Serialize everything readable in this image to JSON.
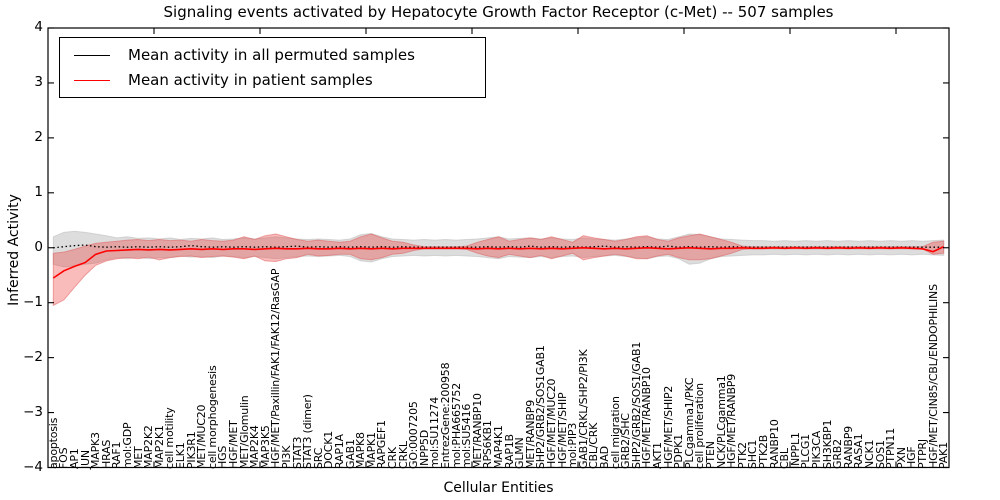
{
  "title": "Signaling events activated by Hepatocyte Growth Factor Receptor (c-Met) -- 507 samples",
  "axes": {
    "x_label": "Cellular Entities",
    "y_label": "Inferred Activity",
    "y_tick_labels": [
      "4",
      "3",
      "2",
      "1",
      "0",
      "−1",
      "−2",
      "−3",
      "−4"
    ]
  },
  "legend": {
    "entries": [
      {
        "label": "Mean activity in all permuted samples",
        "color": "#000000"
      },
      {
        "label": "Mean activity in patient samples",
        "color": "#ff0000"
      }
    ]
  },
  "chart_data": {
    "type": "line",
    "title": "Signaling events activated by Hepatocyte Growth Factor Receptor (c-Met) -- 507 samples",
    "xlabel": "Cellular Entities",
    "ylabel": "Inferred Activity",
    "ylim": [
      -4,
      4
    ],
    "x_tick_step": 10,
    "grid": false,
    "legend_position": "upper left",
    "categories": [
      "apoptosis",
      "FOS",
      "AP1",
      "JUN",
      "MAPK3",
      "HRAS",
      "RAF1",
      "mol:GDP",
      "MET",
      "MAP2K2",
      "MAP2K1",
      "cell motility",
      "ELK1",
      "PIK3R1",
      "MET/MUC20",
      "cell morphogenesis",
      "HGS",
      "HGF/MET",
      "MET/Glomulin",
      "MAP2K4",
      "MAP3K5",
      "HGF/MET/Paxillin/FAK1/FAK12/RasGAP",
      "PI3K",
      "STAT3",
      "STAT3 (dimer)",
      "SRC",
      "DOCK1",
      "RAP1A",
      "GAB1",
      "MAPK8",
      "MAPK1",
      "RAPGEF1",
      "CRK",
      "CRKL",
      "GO:0007205",
      "INPP5D",
      "mol:SU11274",
      "EntrezGene:200958",
      "mol:PHA665752",
      "mol:SU5416",
      "MET/RANBP10",
      "RPS6KB1",
      "MAP4K1",
      "RAP1B",
      "GLMN",
      "MET/RANBP9",
      "SHP2/GRB2/SOS1GAB1",
      "HGF/MET/MUC20",
      "HGF/MET/SHIP",
      "mol:PIP3",
      "GAB1/CRKL/SHP2/PI3K",
      "CBL/CRK",
      "BAD",
      "cell migration",
      "GRB2/SHC",
      "SHP2/GRB2/SOS1/GAB1",
      "HGF/MET/RANBP10",
      "AKT1",
      "HGF/MET/SHIP2",
      "PDPK1",
      "PLCgamma1/PKC",
      "cell proliferation",
      "PTEN",
      "NCK/PLCgamma1",
      "HGF/MET/RANBP9",
      "PTK2",
      "SHC1",
      "PTK2B",
      "RANBP10",
      "CBL",
      "INPPL1",
      "PLCG1",
      "PIK3CA",
      "SH3KBP1",
      "GRB2",
      "RANBP9",
      "RASA1",
      "NCK1",
      "SOS1",
      "PTPN11",
      "PXN",
      "HGF",
      "PTPRJ",
      "HGF/MET/CIN85/CBL/ENDOPHILINS",
      "PAK1"
    ],
    "series": [
      {
        "name": "Mean activity in all permuted samples",
        "color": "#000000",
        "style": "dotted",
        "width": 1.3,
        "values": [
          0,
          0.02,
          0.04,
          0.05,
          0.02,
          0.01,
          0.02,
          0.01,
          0.02,
          0.01,
          0.02,
          0.01,
          0.02,
          0.04,
          0.02,
          0.01,
          0.02,
          0.01,
          0.02,
          0.01,
          0.02,
          0.01,
          0.02,
          0.03,
          0.01,
          0.02,
          0.01,
          0.02,
          0.01,
          0.02,
          0.01,
          0.02,
          0.01,
          0.02,
          0.01,
          0.01,
          0.01,
          0.01,
          0.01,
          0.01,
          0.01,
          0.02,
          0.01,
          0.02,
          0.01,
          0.03,
          0.01,
          0.02,
          0.01,
          0.02,
          0.01,
          0.02,
          0.03,
          0.01,
          0.02,
          0.01,
          0.02,
          0.01,
          0.03,
          0.01,
          0.02,
          0.01,
          0.02,
          0.01,
          0.02,
          0.01,
          0.01,
          0.01,
          0.01,
          0.01,
          0.01,
          0.01,
          0.01,
          0.01,
          0.01,
          0.01,
          0.01,
          0.01,
          0.01,
          0.01,
          0.01,
          0.01,
          0.01,
          0.01,
          0.01
        ],
        "band": {
          "color": "#aaaaaa",
          "edge": "#bbbbbb",
          "opacity": 0.4,
          "hi": [
            0.2,
            0.28,
            0.3,
            0.28,
            0.25,
            0.22,
            0.18,
            0.2,
            0.17,
            0.18,
            0.16,
            0.18,
            0.15,
            0.17,
            0.16,
            0.18,
            0.15,
            0.16,
            0.18,
            0.16,
            0.18,
            0.2,
            0.18,
            0.16,
            0.15,
            0.16,
            0.15,
            0.14,
            0.16,
            0.24,
            0.26,
            0.2,
            0.16,
            0.15,
            0.14,
            0.15,
            0.14,
            0.15,
            0.14,
            0.15,
            0.16,
            0.18,
            0.2,
            0.16,
            0.17,
            0.18,
            0.16,
            0.18,
            0.16,
            0.15,
            0.18,
            0.16,
            0.15,
            0.14,
            0.16,
            0.18,
            0.2,
            0.16,
            0.15,
            0.2,
            0.25,
            0.24,
            0.2,
            0.16,
            0.15,
            0.14,
            0.13,
            0.13,
            0.12,
            0.13,
            0.12,
            0.13,
            0.12,
            0.13,
            0.12,
            0.13,
            0.12,
            0.13,
            0.12,
            0.13,
            0.12,
            0.13,
            0.12,
            0.13,
            0.14
          ],
          "lo": [
            -0.3,
            -0.35,
            -0.33,
            -0.3,
            -0.28,
            -0.22,
            -0.18,
            -0.2,
            -0.17,
            -0.2,
            -0.18,
            -0.18,
            -0.15,
            -0.17,
            -0.16,
            -0.18,
            -0.15,
            -0.16,
            -0.18,
            -0.16,
            -0.18,
            -0.2,
            -0.18,
            -0.16,
            -0.15,
            -0.16,
            -0.15,
            -0.14,
            -0.16,
            -0.24,
            -0.26,
            -0.2,
            -0.16,
            -0.15,
            -0.14,
            -0.15,
            -0.14,
            -0.15,
            -0.14,
            -0.15,
            -0.16,
            -0.18,
            -0.2,
            -0.16,
            -0.17,
            -0.18,
            -0.16,
            -0.18,
            -0.16,
            -0.15,
            -0.18,
            -0.16,
            -0.15,
            -0.14,
            -0.16,
            -0.18,
            -0.2,
            -0.16,
            -0.15,
            -0.2,
            -0.3,
            -0.28,
            -0.2,
            -0.16,
            -0.15,
            -0.14,
            -0.13,
            -0.13,
            -0.12,
            -0.13,
            -0.12,
            -0.13,
            -0.12,
            -0.13,
            -0.12,
            -0.13,
            -0.12,
            -0.13,
            -0.12,
            -0.13,
            -0.12,
            -0.13,
            -0.12,
            -0.13,
            -0.14
          ]
        }
      },
      {
        "name": "Mean activity in patient samples",
        "color": "#ff0000",
        "style": "solid",
        "width": 1.6,
        "values": [
          -0.55,
          -0.42,
          -0.34,
          -0.27,
          -0.12,
          -0.06,
          -0.05,
          -0.04,
          -0.03,
          -0.04,
          -0.03,
          -0.04,
          -0.03,
          -0.02,
          -0.03,
          -0.02,
          -0.03,
          -0.02,
          -0.02,
          -0.03,
          -0.02,
          -0.01,
          -0.02,
          -0.02,
          -0.01,
          -0.02,
          -0.02,
          -0.01,
          -0.02,
          -0.01,
          -0.02,
          -0.01,
          -0.02,
          -0.01,
          -0.01,
          -0.01,
          -0.01,
          -0.01,
          -0.01,
          -0.01,
          -0.02,
          -0.01,
          -0.02,
          -0.01,
          -0.02,
          -0.01,
          -0.02,
          -0.01,
          -0.02,
          -0.01,
          0,
          -0.01,
          -0.02,
          -0.01,
          -0.02,
          -0.01,
          0,
          -0.01,
          -0.02,
          -0.01,
          0,
          -0.01,
          -0.02,
          -0.01,
          -0.01,
          0,
          -0.01,
          -0.01,
          0,
          -0.01,
          0,
          -0.01,
          0,
          -0.01,
          0,
          -0.01,
          0,
          -0.01,
          0,
          -0.01,
          0,
          -0.01,
          -0.02,
          -0.07,
          0.02
        ],
        "band": {
          "color": "#f03030",
          "edge": "#e06060",
          "opacity": 0.33,
          "hi": [
            -0.1,
            -0.08,
            -0.03,
            0.03,
            0.08,
            0.1,
            0.12,
            0.14,
            0.15,
            0.13,
            0.15,
            0.13,
            0.14,
            0.12,
            0.15,
            0.13,
            0.12,
            0.14,
            0.2,
            0.15,
            0.22,
            0.25,
            0.2,
            0.15,
            0.12,
            0.14,
            0.12,
            0.1,
            0.12,
            0.2,
            0.25,
            0.18,
            0.12,
            0.1,
            0.05,
            0.02,
            0.02,
            0.02,
            0.02,
            0.03,
            0.1,
            0.15,
            0.2,
            0.12,
            0.15,
            0.18,
            0.15,
            0.2,
            0.15,
            0.1,
            0.22,
            0.18,
            0.15,
            0.12,
            0.15,
            0.2,
            0.22,
            0.15,
            0.12,
            0.18,
            0.22,
            0.25,
            0.2,
            0.15,
            0.1,
            0.03,
            0.02,
            0.02,
            0.02,
            0.02,
            0.02,
            0.02,
            0.02,
            0.02,
            0.02,
            0.02,
            0.02,
            0.02,
            0.02,
            0.02,
            0.02,
            0.02,
            0.02,
            0.1,
            0.12
          ],
          "lo": [
            -1.05,
            -0.95,
            -0.72,
            -0.5,
            -0.32,
            -0.24,
            -0.2,
            -0.18,
            -0.2,
            -0.17,
            -0.22,
            -0.18,
            -0.16,
            -0.15,
            -0.18,
            -0.16,
            -0.15,
            -0.17,
            -0.2,
            -0.15,
            -0.24,
            -0.25,
            -0.2,
            -0.18,
            -0.12,
            -0.15,
            -0.14,
            -0.12,
            -0.12,
            -0.2,
            -0.22,
            -0.18,
            -0.12,
            -0.1,
            -0.05,
            -0.02,
            -0.02,
            -0.02,
            -0.02,
            -0.03,
            -0.1,
            -0.15,
            -0.18,
            -0.12,
            -0.15,
            -0.18,
            -0.14,
            -0.2,
            -0.15,
            -0.1,
            -0.22,
            -0.18,
            -0.15,
            -0.12,
            -0.15,
            -0.2,
            -0.2,
            -0.15,
            -0.12,
            -0.18,
            -0.22,
            -0.22,
            -0.2,
            -0.15,
            -0.1,
            -0.03,
            -0.02,
            -0.02,
            -0.02,
            -0.02,
            -0.02,
            -0.02,
            -0.02,
            -0.02,
            -0.02,
            -0.02,
            -0.02,
            -0.02,
            -0.02,
            -0.02,
            -0.02,
            -0.02,
            -0.02,
            -0.12,
            -0.1
          ]
        }
      }
    ]
  }
}
